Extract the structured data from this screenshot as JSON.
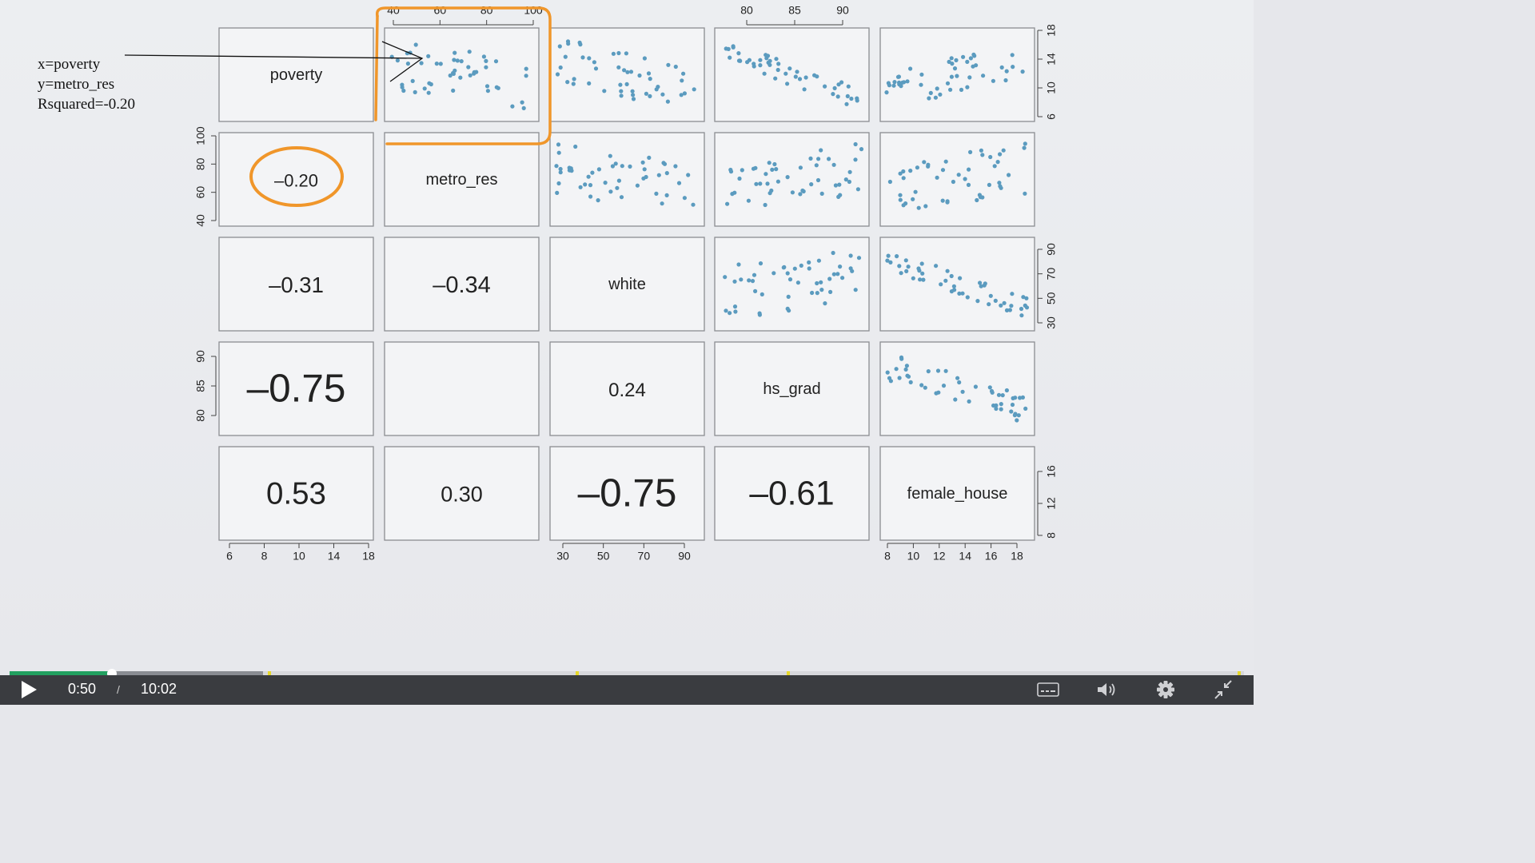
{
  "annotation": {
    "lines": [
      "x=poverty",
      "y=metro_res",
      "Rsquared=-0.20"
    ]
  },
  "matrix": {
    "variables": [
      "poverty",
      "metro_res",
      "white",
      "hs_grad",
      "female_house"
    ],
    "correlations": [
      {
        "row": 1,
        "col": 0,
        "text": "-0.20"
      },
      {
        "row": 2,
        "col": 0,
        "text": "-0.31"
      },
      {
        "row": 2,
        "col": 1,
        "text": "-0.34"
      },
      {
        "row": 3,
        "col": 0,
        "text": "-0.75"
      },
      {
        "row": 3,
        "col": 2,
        "text": "0.24"
      },
      {
        "row": 4,
        "col": 0,
        "text": "0.53"
      },
      {
        "row": 4,
        "col": 1,
        "text": "0.30"
      },
      {
        "row": 4,
        "col": 2,
        "text": "-0.75"
      },
      {
        "row": 4,
        "col": 3,
        "text": "-0.61"
      }
    ],
    "axes": {
      "top_metro_res": [
        "40",
        "60",
        "80",
        "100"
      ],
      "top_hs_grad": [
        "80",
        "85",
        "90"
      ],
      "right_poverty": [
        "6",
        "10",
        "14",
        "18"
      ],
      "right_white": [
        "30",
        "50",
        "70",
        "90"
      ],
      "right_female_house": [
        "8",
        "12",
        "16"
      ],
      "left_metro_res": [
        "40",
        "60",
        "80",
        "100"
      ],
      "left_hs_grad": [
        "80",
        "85",
        "90"
      ],
      "bottom_poverty": [
        "6",
        "8",
        "10",
        "14",
        "18"
      ],
      "bottom_white": [
        "30",
        "50",
        "70",
        "90"
      ],
      "bottom_female_house": [
        "8",
        "10",
        "12",
        "14",
        "16",
        "18"
      ]
    },
    "point_color": "#5b9bbf",
    "highlight_color": "#f0962a"
  },
  "player": {
    "current_time": "0:50",
    "separator": "/",
    "total_time": "10:02",
    "played_fraction": 0.083,
    "buffered_fraction": 0.205,
    "accent": "#22a060"
  }
}
